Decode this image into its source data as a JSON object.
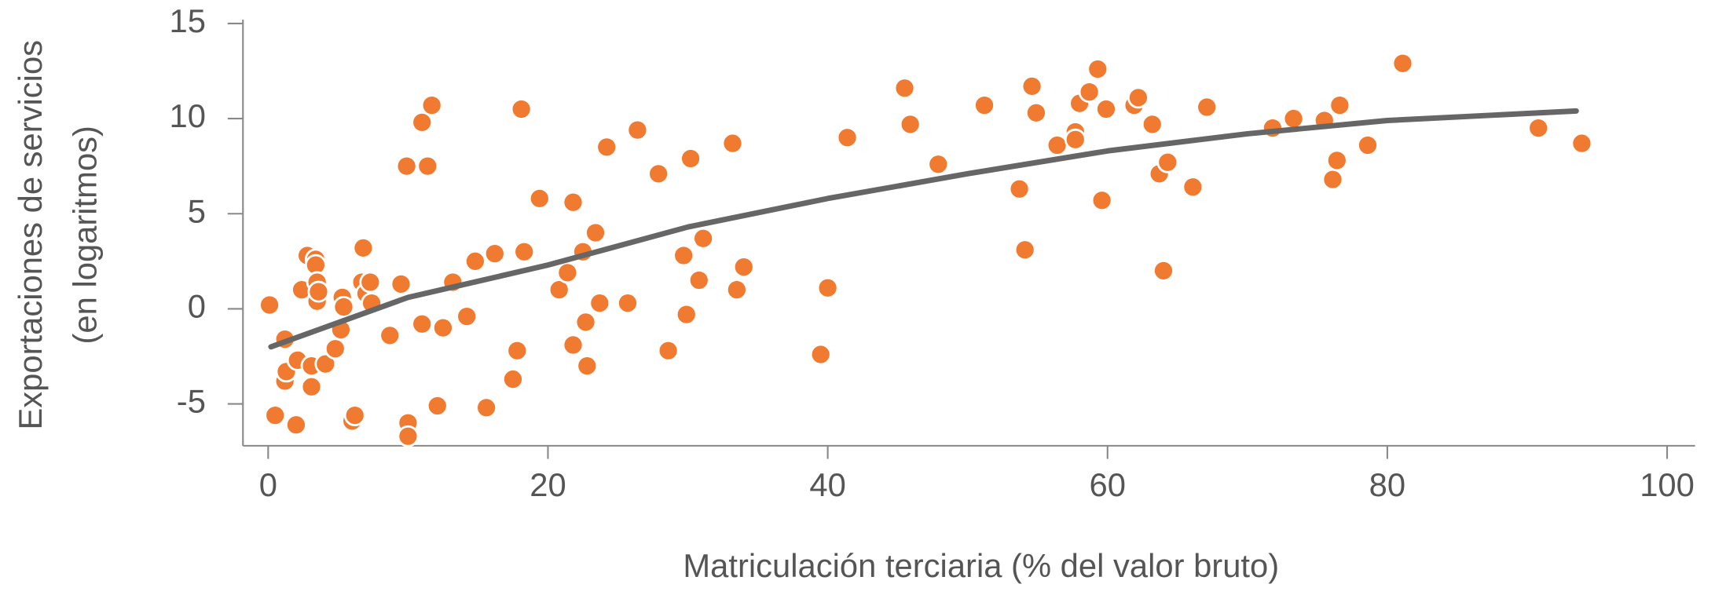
{
  "chart_data": {
    "type": "scatter",
    "xlabel": "Matriculación terciaria (% del valor bruto)",
    "ylabel": [
      "Exportaciones de servicios",
      "(en logaritmos)"
    ],
    "xlim": [
      -1.8,
      102
    ],
    "ylim": [
      -7.2,
      15.2
    ],
    "xticks": [
      0,
      20,
      40,
      60,
      80,
      100
    ],
    "yticks": [
      -5,
      0,
      5,
      10,
      15
    ],
    "color": "#f07a30",
    "x": [
      0.1,
      0.5,
      1.2,
      1.2,
      1.3,
      2,
      2.1,
      2.4,
      2.8,
      3.1,
      3.1,
      3.4,
      3.4,
      3.5,
      3.5,
      3.6,
      4.1,
      4.8,
      5.2,
      5.3,
      5.4,
      6.0,
      6.2,
      6.7,
      6.8,
      7.0,
      7.3,
      7.4,
      8.7,
      9.5,
      9.9,
      10.0,
      10.0,
      11.0,
      11.0,
      11.4,
      11.7,
      12.1,
      12.5,
      13.2,
      14.2,
      14.8,
      15.6,
      16.2,
      17.5,
      17.8,
      18.1,
      18.3,
      19.4,
      20.8,
      21.4,
      21.8,
      21.8,
      22.5,
      22.7,
      22.8,
      23.4,
      23.7,
      24.2,
      25.7,
      26.4,
      27.9,
      28.6,
      29.7,
      29.9,
      30.2,
      30.8,
      31.1,
      33.2,
      33.5,
      34.0,
      39.5,
      40.0,
      41.4,
      45.5,
      45.9,
      47.9,
      51.2,
      53.7,
      54.1,
      54.6,
      54.9,
      56.4,
      57.7,
      57.7,
      58.0,
      58.7,
      59.3,
      59.6,
      59.9,
      61.9,
      62.2,
      63.2,
      63.7,
      64.0,
      64.3,
      66.1,
      67.1,
      71.8,
      73.3,
      75.5,
      76.1,
      76.4,
      76.6,
      78.6,
      81.1,
      90.8,
      93.9
    ],
    "values": [
      0.2,
      -5.6,
      -1.6,
      -3.8,
      -3.3,
      -6.1,
      -2.7,
      1.0,
      2.8,
      -3.0,
      -4.1,
      2.6,
      2.3,
      1.4,
      0.4,
      0.9,
      -2.9,
      -2.1,
      -1.1,
      0.6,
      0.1,
      -5.9,
      -5.6,
      1.4,
      3.2,
      0.8,
      1.4,
      0.3,
      -1.4,
      1.3,
      7.5,
      -6.0,
      -6.7,
      9.8,
      -0.8,
      7.5,
      10.7,
      -5.1,
      -1.0,
      1.4,
      -0.4,
      2.5,
      -5.2,
      2.9,
      -3.7,
      -2.2,
      10.5,
      3.0,
      5.8,
      1.0,
      1.9,
      5.6,
      -1.9,
      3.0,
      -0.7,
      -3.0,
      4.0,
      0.3,
      8.5,
      0.3,
      9.4,
      7.1,
      -2.2,
      2.8,
      -0.3,
      7.9,
      1.5,
      3.7,
      8.7,
      1.0,
      2.2,
      -2.4,
      1.1,
      9.0,
      11.6,
      9.7,
      7.6,
      10.7,
      6.3,
      3.1,
      11.7,
      10.3,
      8.6,
      9.3,
      8.9,
      10.8,
      11.4,
      12.6,
      5.7,
      10.5,
      10.7,
      11.1,
      9.7,
      7.1,
      2.0,
      7.7,
      6.4,
      10.6,
      9.5,
      10.0,
      9.9,
      6.8,
      7.8,
      10.7,
      8.6,
      12.9,
      9.5,
      8.7
    ],
    "fit": {
      "color": "#666666",
      "x": [
        0.2,
        10,
        20,
        30,
        40,
        50,
        60,
        70,
        80,
        93.5
      ],
      "values": [
        -2,
        0.6,
        2.3,
        4.3,
        5.8,
        7.1,
        8.3,
        9.2,
        9.9,
        10.4
      ]
    }
  }
}
